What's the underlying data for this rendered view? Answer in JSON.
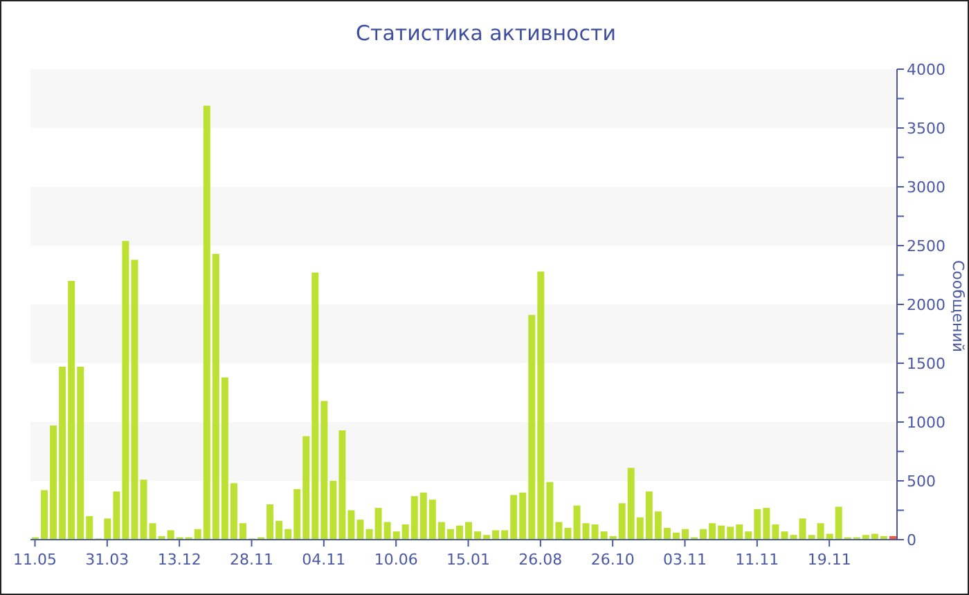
{
  "chart_data": {
    "type": "bar",
    "title": "Статистика активности",
    "ylabel": "Сообщений",
    "categories": [
      "11.05",
      null,
      null,
      null,
      null,
      null,
      null,
      null,
      "31.03",
      null,
      null,
      null,
      null,
      null,
      null,
      null,
      "13.12",
      null,
      null,
      null,
      null,
      null,
      null,
      null,
      "28.11",
      null,
      null,
      null,
      null,
      null,
      null,
      null,
      "04.11",
      null,
      null,
      null,
      null,
      null,
      null,
      null,
      "10.06",
      null,
      null,
      null,
      null,
      null,
      null,
      null,
      "15.01",
      null,
      null,
      null,
      null,
      null,
      null,
      null,
      "26.08",
      null,
      null,
      null,
      null,
      null,
      null,
      null,
      "26.10",
      null,
      null,
      null,
      null,
      null,
      null,
      null,
      "03.11",
      null,
      null,
      null,
      null,
      null,
      null,
      null,
      "11.11",
      null,
      null,
      null,
      null,
      null,
      null,
      null,
      "19.11",
      null,
      null,
      null,
      null,
      null,
      null,
      null
    ],
    "values": [
      20,
      420,
      970,
      1470,
      2200,
      1470,
      200,
      10,
      180,
      410,
      2540,
      2380,
      510,
      140,
      30,
      80,
      20,
      20,
      90,
      3690,
      2430,
      1380,
      480,
      140,
      10,
      20,
      300,
      160,
      90,
      430,
      880,
      2270,
      1180,
      500,
      930,
      250,
      170,
      90,
      270,
      150,
      70,
      130,
      370,
      400,
      340,
      150,
      90,
      120,
      150,
      70,
      40,
      80,
      80,
      380,
      400,
      1910,
      2280,
      490,
      150,
      100,
      290,
      140,
      130,
      70,
      30,
      310,
      610,
      190,
      410,
      240,
      100,
      60,
      90,
      20,
      90,
      140,
      120,
      110,
      130,
      70,
      260,
      270,
      130,
      70,
      40,
      180,
      40,
      140,
      50,
      280,
      20,
      20,
      40,
      50,
      30,
      30
    ],
    "colors": [
      "#bce132",
      "#bce132",
      "#bce132",
      "#bce132",
      "#bce132",
      "#bce132",
      "#bce132",
      "#bce132",
      "#bce132",
      "#bce132",
      "#bce132",
      "#bce132",
      "#bce132",
      "#bce132",
      "#bce132",
      "#bce132",
      "#bce132",
      "#bce132",
      "#bce132",
      "#bce132",
      "#bce132",
      "#bce132",
      "#bce132",
      "#bce132",
      "#bce132",
      "#bce132",
      "#bce132",
      "#bce132",
      "#bce132",
      "#bce132",
      "#bce132",
      "#bce132",
      "#bce132",
      "#bce132",
      "#bce132",
      "#bce132",
      "#bce132",
      "#bce132",
      "#bce132",
      "#bce132",
      "#bce132",
      "#bce132",
      "#bce132",
      "#bce132",
      "#bce132",
      "#bce132",
      "#bce132",
      "#bce132",
      "#bce132",
      "#bce132",
      "#bce132",
      "#bce132",
      "#bce132",
      "#bce132",
      "#bce132",
      "#bce132",
      "#bce132",
      "#bce132",
      "#bce132",
      "#bce132",
      "#bce132",
      "#bce132",
      "#bce132",
      "#bce132",
      "#bce132",
      "#bce132",
      "#bce132",
      "#bce132",
      "#bce132",
      "#bce132",
      "#bce132",
      "#bce132",
      "#bce132",
      "#bce132",
      "#bce132",
      "#bce132",
      "#bce132",
      "#bce132",
      "#bce132",
      "#bce132",
      "#bce132",
      "#bce132",
      "#bce132",
      "#bce132",
      "#bce132",
      "#bce132",
      "#bce132",
      "#bce132",
      "#bce132",
      "#bce132",
      "#bce132",
      "#bce132",
      "#bce132",
      "#bce132",
      "#bce132",
      "#ee5a3a"
    ],
    "ylim": [
      0,
      4000
    ],
    "yticks": [
      0,
      {
        "value": 250,
        "label": null
      },
      500,
      {
        "value": 750,
        "label": null
      },
      1000,
      {
        "value": 1250,
        "label": null
      },
      1500,
      {
        "value": 1750,
        "label": null
      },
      2000,
      {
        "value": 2250,
        "label": null
      },
      2500,
      {
        "value": 2750,
        "label": null
      },
      3000,
      {
        "value": 3250,
        "label": null
      },
      3500,
      {
        "value": 3750,
        "label": null
      },
      4000
    ],
    "bands": [
      {
        "axis": "y",
        "from": 500,
        "to": 1000,
        "color": "#f7f7f7"
      },
      {
        "axis": "y",
        "from": 1500,
        "to": 2000,
        "color": "#f7f7f7"
      },
      {
        "axis": "y",
        "from": 2500,
        "to": 3000,
        "color": "#f7f7f7"
      },
      {
        "axis": "y",
        "from": 3500,
        "to": 4000,
        "color": "#f7f7f7"
      }
    ]
  }
}
